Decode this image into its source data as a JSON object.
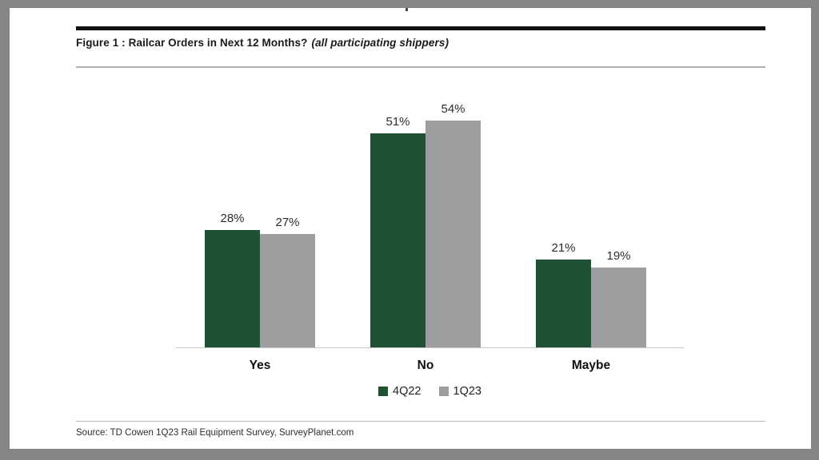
{
  "figure": {
    "title_main": "Figure 1 : Railcar Orders in Next 12 Months?",
    "title_note": "(all participating shippers)"
  },
  "chart_data": {
    "type": "bar",
    "title": "Figure 1 : Railcar Orders in Next 12 Months? (all participating shippers)",
    "categories": [
      "Yes",
      "No",
      "Maybe"
    ],
    "series": [
      {
        "name": "4Q22",
        "color": "#1d5233",
        "values": [
          28,
          51,
          21
        ]
      },
      {
        "name": "1Q23",
        "color": "#9e9ea1",
        "values": [
          27,
          54,
          19
        ]
      }
    ],
    "value_unit": "%",
    "ylim": [
      0,
      60
    ],
    "grid": false,
    "data_labels": true,
    "legend_position": "bottom",
    "xlabel": "",
    "ylabel": ""
  },
  "source": {
    "text": "Source: TD Cowen 1Q23 Rail Equipment Survey, SurveyPlanet.com"
  },
  "colors": {
    "frame": "#858585",
    "series_4q22": "#1d5233",
    "series_1q23": "#9e9ea1",
    "axis_line": "#c6c6c6",
    "rule_black": "#121212",
    "rule_gray": "#b0b0b0"
  }
}
